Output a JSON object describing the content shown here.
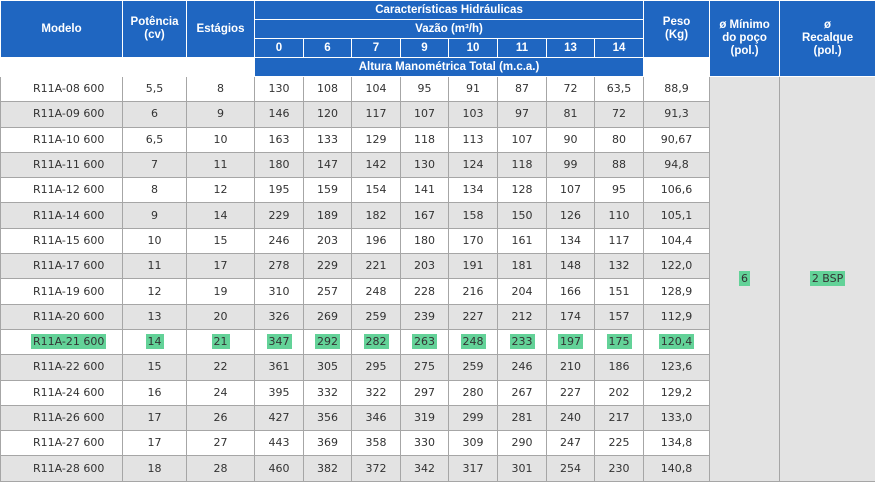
{
  "header": {
    "modelo": "Modelo",
    "potencia_1": "Potência",
    "potencia_2": "(cv)",
    "estagios": "Estágios",
    "caracteristicas": "Características Hidráulicas",
    "vazao": "Vazão (m³/h)",
    "vazoes": [
      "0",
      "6",
      "7",
      "9",
      "10",
      "11",
      "13",
      "14"
    ],
    "altura": "Altura Manométrica Total (m.c.a.)",
    "peso_1": "Peso",
    "peso_2": "(Kg)",
    "minimo_1": "ø Mínimo",
    "minimo_2": "do poço",
    "minimo_3": "(pol.)",
    "recalque_1": "ø",
    "recalque_2": "Recalque",
    "recalque_3": "(pol.)"
  },
  "merged": {
    "diametro_poco": "6",
    "recalque": "2 BSP"
  },
  "colors": {
    "header_bg": "#1f66c1",
    "stripe": "#e3e3e3",
    "highlight": "#63d298"
  },
  "highlighted_row_index": 10,
  "rows": [
    {
      "modelo": "R11A-08 600",
      "potencia": "5,5",
      "estagios": "8",
      "alturas": [
        "130",
        "108",
        "104",
        "95",
        "91",
        "87",
        "72",
        "63,5"
      ],
      "peso": "88,9"
    },
    {
      "modelo": "R11A-09 600",
      "potencia": "6",
      "estagios": "9",
      "alturas": [
        "146",
        "120",
        "117",
        "107",
        "103",
        "97",
        "81",
        "72"
      ],
      "peso": "91,3"
    },
    {
      "modelo": "R11A-10 600",
      "potencia": "6,5",
      "estagios": "10",
      "alturas": [
        "163",
        "133",
        "129",
        "118",
        "113",
        "107",
        "90",
        "80"
      ],
      "peso": "90,67"
    },
    {
      "modelo": "R11A-11 600",
      "potencia": "7",
      "estagios": "11",
      "alturas": [
        "180",
        "147",
        "142",
        "130",
        "124",
        "118",
        "99",
        "88"
      ],
      "peso": "94,8"
    },
    {
      "modelo": "R11A-12 600",
      "potencia": "8",
      "estagios": "12",
      "alturas": [
        "195",
        "159",
        "154",
        "141",
        "134",
        "128",
        "107",
        "95"
      ],
      "peso": "106,6"
    },
    {
      "modelo": "R11A-14 600",
      "potencia": "9",
      "estagios": "14",
      "alturas": [
        "229",
        "189",
        "182",
        "167",
        "158",
        "150",
        "126",
        "110"
      ],
      "peso": "105,1"
    },
    {
      "modelo": "R11A-15 600",
      "potencia": "10",
      "estagios": "15",
      "alturas": [
        "246",
        "203",
        "196",
        "180",
        "170",
        "161",
        "134",
        "117"
      ],
      "peso": "104,4"
    },
    {
      "modelo": "R11A-17 600",
      "potencia": "11",
      "estagios": "17",
      "alturas": [
        "278",
        "229",
        "221",
        "203",
        "191",
        "181",
        "148",
        "132"
      ],
      "peso": "122,0"
    },
    {
      "modelo": "R11A-19 600",
      "potencia": "12",
      "estagios": "19",
      "alturas": [
        "310",
        "257",
        "248",
        "228",
        "216",
        "204",
        "166",
        "151"
      ],
      "peso": "128,9"
    },
    {
      "modelo": "R11A-20 600",
      "potencia": "13",
      "estagios": "20",
      "alturas": [
        "326",
        "269",
        "259",
        "239",
        "227",
        "212",
        "174",
        "157"
      ],
      "peso": "112,9"
    },
    {
      "modelo": "R11A-21 600",
      "potencia": "14",
      "estagios": "21",
      "alturas": [
        "347",
        "292",
        "282",
        "263",
        "248",
        "233",
        "197",
        "175"
      ],
      "peso": "120,4"
    },
    {
      "modelo": "R11A-22 600",
      "potencia": "15",
      "estagios": "22",
      "alturas": [
        "361",
        "305",
        "295",
        "275",
        "259",
        "246",
        "210",
        "186"
      ],
      "peso": "123,6"
    },
    {
      "modelo": "R11A-24 600",
      "potencia": "16",
      "estagios": "24",
      "alturas": [
        "395",
        "332",
        "322",
        "297",
        "280",
        "267",
        "227",
        "202"
      ],
      "peso": "129,2"
    },
    {
      "modelo": "R11A-26 600",
      "potencia": "17",
      "estagios": "26",
      "alturas": [
        "427",
        "356",
        "346",
        "319",
        "299",
        "281",
        "240",
        "217"
      ],
      "peso": "133,0"
    },
    {
      "modelo": "R11A-27 600",
      "potencia": "17",
      "estagios": "27",
      "alturas": [
        "443",
        "369",
        "358",
        "330",
        "309",
        "290",
        "247",
        "225"
      ],
      "peso": "134,8"
    },
    {
      "modelo": "R11A-28 600",
      "potencia": "18",
      "estagios": "28",
      "alturas": [
        "460",
        "382",
        "372",
        "342",
        "317",
        "301",
        "254",
        "230"
      ],
      "peso": "140,8"
    }
  ]
}
